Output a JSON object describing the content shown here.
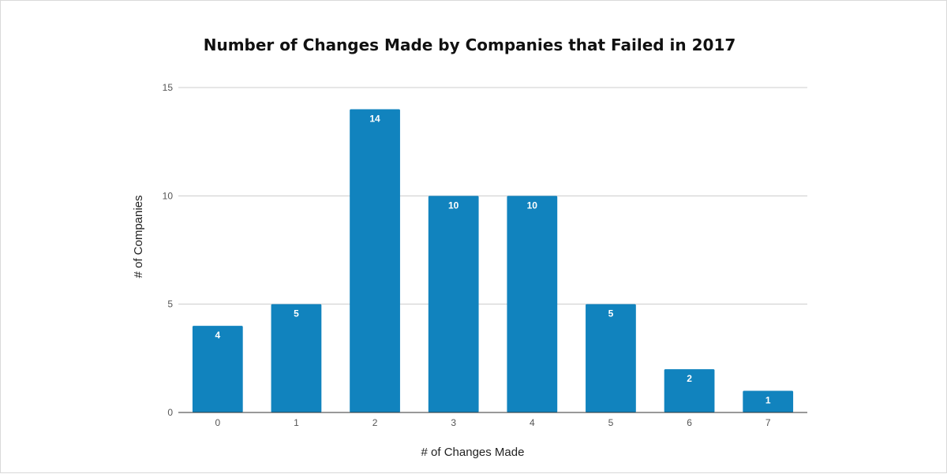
{
  "chart_data": {
    "type": "bar",
    "title": "Number of Changes Made by Companies that Failed in 2017",
    "xlabel": "# of Changes Made",
    "ylabel": "# of Companies",
    "categories": [
      "0",
      "1",
      "2",
      "3",
      "4",
      "5",
      "6",
      "7"
    ],
    "values": [
      4,
      5,
      14,
      10,
      10,
      5,
      2,
      1
    ],
    "ylim": [
      0,
      15
    ],
    "yticks": [
      0,
      5,
      10,
      15
    ],
    "grid": true,
    "legend": "none",
    "bar_color": "#1183be",
    "data_labels": true
  }
}
